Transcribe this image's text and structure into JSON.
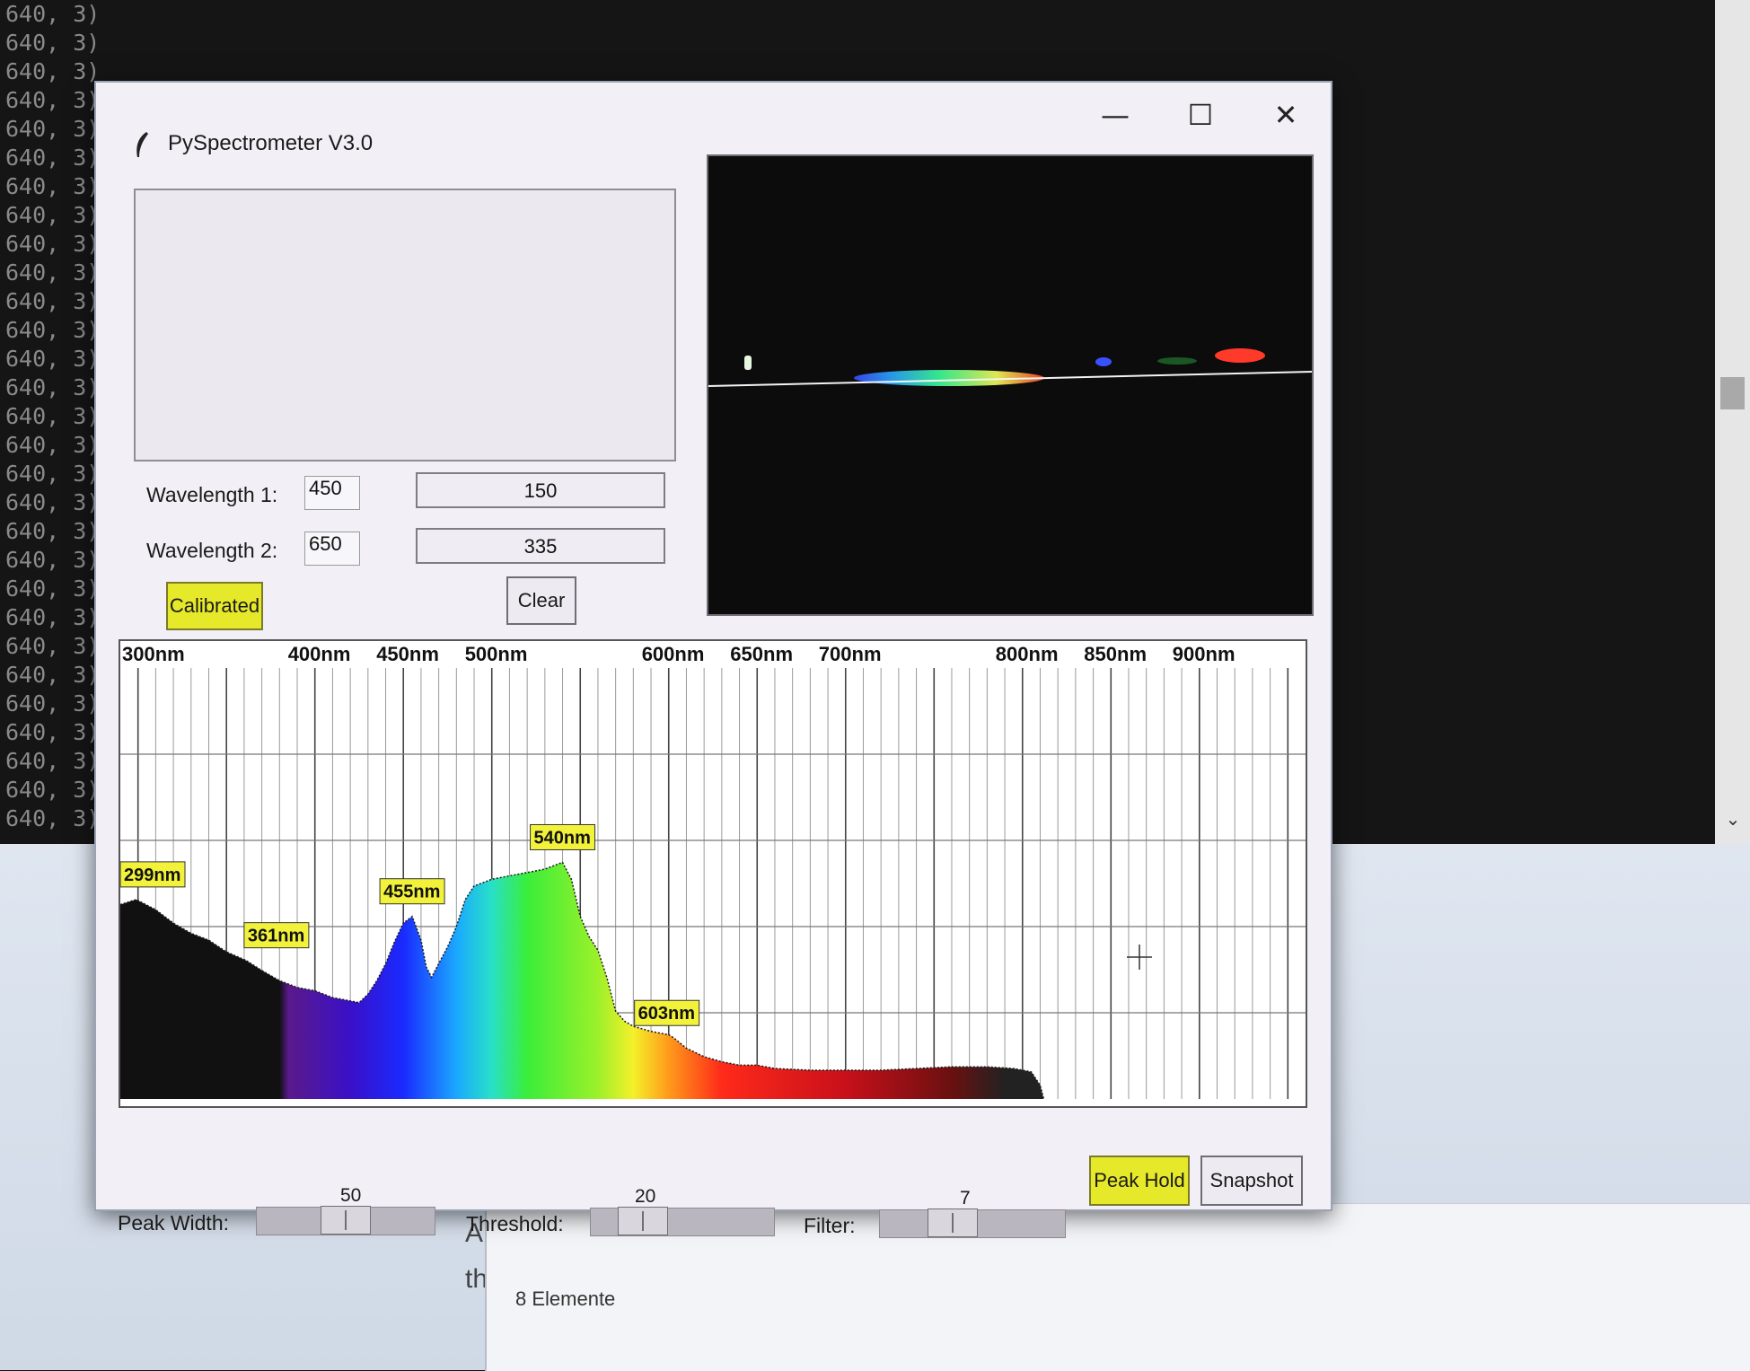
{
  "terminal": {
    "lines": [
      "640, 3)",
      "640, 3)",
      "640, 3)",
      "640, 3)",
      "640, 3)",
      "640, 3)",
      "640, 3)",
      "640, 3)",
      "640, 3)",
      "640, 3)",
      "640, 3)",
      "640, 3)",
      "640, 3)",
      "640, 3)",
      "640, 3)",
      "640, 3)",
      "640, 3)",
      "640, 3)",
      "640, 3)",
      "640, 3)",
      "640, 3)",
      "640, 3)",
      "640, 3)",
      "640, 3)",
      "640, 3)",
      "640, 3)",
      "640, 3)",
      "640, 3)",
      "640, 3)"
    ],
    "scroll_down_icon": "chevron-down-icon"
  },
  "explorer": {
    "fragment_1": "A",
    "fragment_2": "th",
    "status": "8 Elemente"
  },
  "window": {
    "title": "PySpectrometer V3.0",
    "minimize": "—",
    "maximize": "☐",
    "close": "✕"
  },
  "calibration": {
    "wavelength1_label": "Wavelength 1:",
    "wavelength1_value": "450",
    "pixel1_value": "150",
    "wavelength2_label": "Wavelength 2:",
    "wavelength2_value": "650",
    "pixel2_value": "335",
    "calibrated_button": "Calibrated",
    "clear_button": "Clear"
  },
  "colors": {
    "button_active": "#e6e82a",
    "label_background": "#f2f23a"
  },
  "chart_data": {
    "type": "area",
    "x_tick_labels": [
      "300nm",
      "400nm",
      "450nm",
      "500nm",
      "600nm",
      "650nm",
      "700nm",
      "800nm",
      "850nm",
      "900nm"
    ],
    "peak_labels": [
      "299nm",
      "361nm",
      "455nm",
      "540nm",
      "603nm"
    ],
    "peaks": [
      {
        "label": "299nm",
        "x": 299
      },
      {
        "label": "361nm",
        "x": 361
      },
      {
        "label": "455nm",
        "x": 455
      },
      {
        "label": "540nm",
        "x": 540
      },
      {
        "label": "603nm",
        "x": 603
      }
    ],
    "xlim": [
      290,
      960
    ],
    "ylim": [
      0,
      255
    ],
    "grid": true,
    "spectrum": [
      [
        290,
        115
      ],
      [
        299,
        118
      ],
      [
        310,
        112
      ],
      [
        320,
        104
      ],
      [
        330,
        98
      ],
      [
        340,
        94
      ],
      [
        350,
        87
      ],
      [
        361,
        82
      ],
      [
        370,
        76
      ],
      [
        380,
        70
      ],
      [
        390,
        66
      ],
      [
        400,
        64
      ],
      [
        405,
        62
      ],
      [
        410,
        60
      ],
      [
        420,
        58
      ],
      [
        425,
        57
      ],
      [
        430,
        62
      ],
      [
        435,
        70
      ],
      [
        440,
        80
      ],
      [
        445,
        93
      ],
      [
        450,
        104
      ],
      [
        455,
        108
      ],
      [
        460,
        94
      ],
      [
        463,
        78
      ],
      [
        466,
        72
      ],
      [
        470,
        80
      ],
      [
        475,
        90
      ],
      [
        480,
        102
      ],
      [
        485,
        118
      ],
      [
        490,
        126
      ],
      [
        495,
        128
      ],
      [
        500,
        130
      ],
      [
        510,
        132
      ],
      [
        520,
        134
      ],
      [
        530,
        136
      ],
      [
        535,
        138
      ],
      [
        540,
        140
      ],
      [
        545,
        130
      ],
      [
        550,
        108
      ],
      [
        555,
        96
      ],
      [
        560,
        88
      ],
      [
        565,
        72
      ],
      [
        570,
        52
      ],
      [
        575,
        46
      ],
      [
        580,
        43
      ],
      [
        590,
        40
      ],
      [
        600,
        38
      ],
      [
        603,
        36
      ],
      [
        610,
        30
      ],
      [
        620,
        25
      ],
      [
        630,
        22
      ],
      [
        640,
        20
      ],
      [
        650,
        20
      ],
      [
        660,
        18
      ],
      [
        680,
        17
      ],
      [
        700,
        17
      ],
      [
        720,
        17
      ],
      [
        740,
        18
      ],
      [
        760,
        19
      ],
      [
        780,
        19
      ],
      [
        795,
        18
      ],
      [
        805,
        16
      ],
      [
        810,
        8
      ],
      [
        812,
        0
      ]
    ]
  },
  "controls": {
    "peak_width": {
      "label": "Peak Width:",
      "value": 50,
      "min": 0,
      "max": 100
    },
    "threshold": {
      "label": "Threshold:",
      "value": 20,
      "min": 0,
      "max": 100
    },
    "filter": {
      "label": "Filter:",
      "value": 7,
      "min": 0,
      "max": 20
    },
    "peak_hold_button": "Peak Hold",
    "snapshot_button": "Snapshot"
  }
}
